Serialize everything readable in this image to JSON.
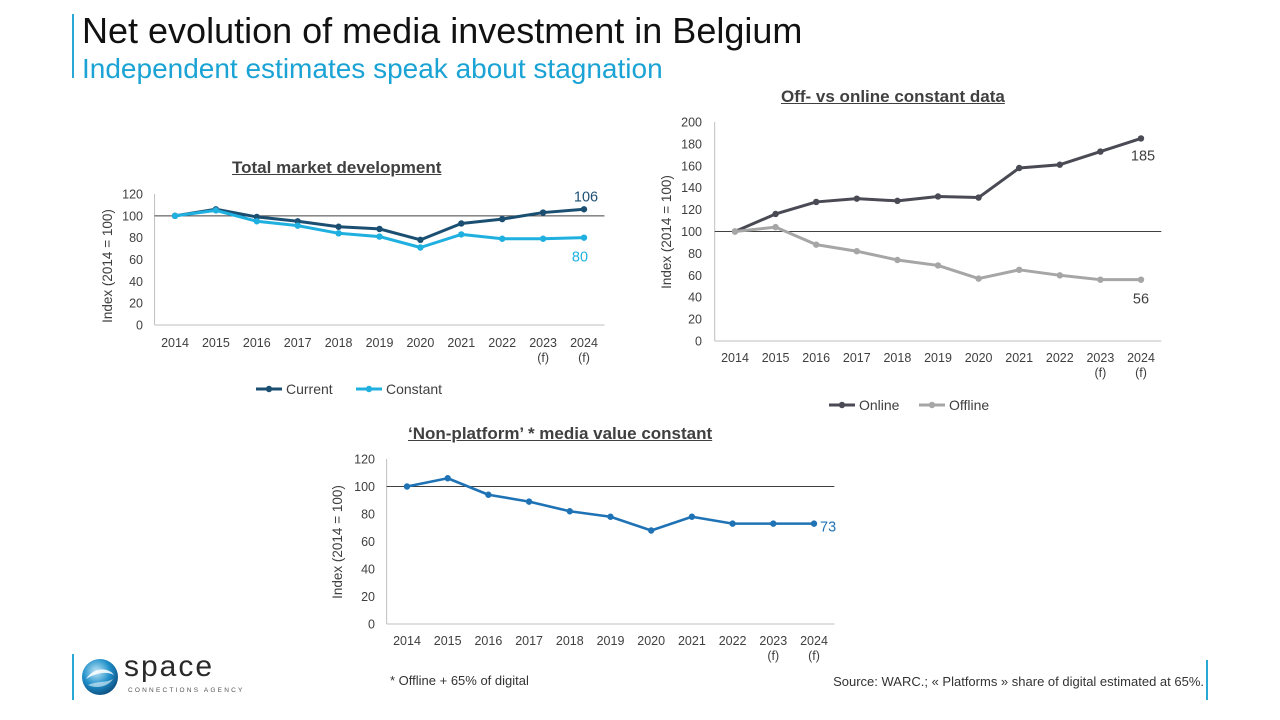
{
  "page": {
    "title": "Net evolution of media investment in Belgium",
    "subtitle": "Independent estimates speak about stagnation",
    "footnote": "* Offline + 65% of digital",
    "source": "Source: WARC.; « Platforms » share of digital estimated at 65%.",
    "logo": {
      "word": "space",
      "tagline": "CONNECTIONS AGENCY"
    }
  },
  "colors": {
    "current": "#1b4f72",
    "constant": "#1fb0e0",
    "online": "#4a4a55",
    "offline": "#a6a6a6",
    "nonplatform": "#1f73b5",
    "accent": "#29a8d6"
  },
  "chart_data": [
    {
      "id": "total",
      "type": "line",
      "title": "Total market development",
      "ylabel": "Index  (2014 = 100)",
      "ylim": [
        0,
        120
      ],
      "yticks": [
        0,
        20,
        40,
        60,
        80,
        100,
        120
      ],
      "categories": [
        "2014",
        "2015",
        "2016",
        "2017",
        "2018",
        "2019",
        "2020",
        "2021",
        "2022",
        "2023\n(f)",
        "2024\n(f)"
      ],
      "series": [
        {
          "name": "Current",
          "values": [
            100,
            106,
            99,
            95,
            90,
            88,
            78,
            93,
            97,
            103,
            106
          ],
          "end_label": "106"
        },
        {
          "name": "Constant",
          "values": [
            100,
            105,
            95,
            91,
            84,
            81,
            71,
            83,
            79,
            79,
            80
          ],
          "end_label": "80"
        }
      ],
      "legend": "bottom"
    },
    {
      "id": "offon",
      "type": "line",
      "title": "Off- vs online constant data",
      "ylabel": "Index  (2014 = 100)",
      "ylim": [
        0,
        200
      ],
      "yticks": [
        0,
        20,
        40,
        60,
        80,
        100,
        120,
        140,
        160,
        180,
        200
      ],
      "categories": [
        "2014",
        "2015",
        "2016",
        "2017",
        "2018",
        "2019",
        "2020",
        "2021",
        "2022",
        "2023\n(f)",
        "2024\n(f)"
      ],
      "series": [
        {
          "name": "Online",
          "values": [
            100,
            116,
            127,
            130,
            128,
            132,
            131,
            158,
            161,
            173,
            185
          ],
          "end_label": "185"
        },
        {
          "name": "Offline",
          "values": [
            100,
            104,
            88,
            82,
            74,
            69,
            57,
            65,
            60,
            56,
            56
          ],
          "end_label": "56"
        }
      ],
      "legend": "bottom"
    },
    {
      "id": "nonplatform",
      "type": "line",
      "title": "‘Non-platform’ * media value constant",
      "ylabel": "Index  (2014 = 100)",
      "ylim": [
        0,
        120
      ],
      "yticks": [
        0,
        20,
        40,
        60,
        80,
        100,
        120
      ],
      "categories": [
        "2014",
        "2015",
        "2016",
        "2017",
        "2018",
        "2019",
        "2020",
        "2021",
        "2022",
        "2023\n(f)",
        "2024\n(f)"
      ],
      "series": [
        {
          "name": "Non-platform",
          "values": [
            100,
            106,
            94,
            89,
            82,
            78,
            68,
            78,
            73,
            73,
            73
          ],
          "end_label": "73"
        }
      ]
    }
  ]
}
